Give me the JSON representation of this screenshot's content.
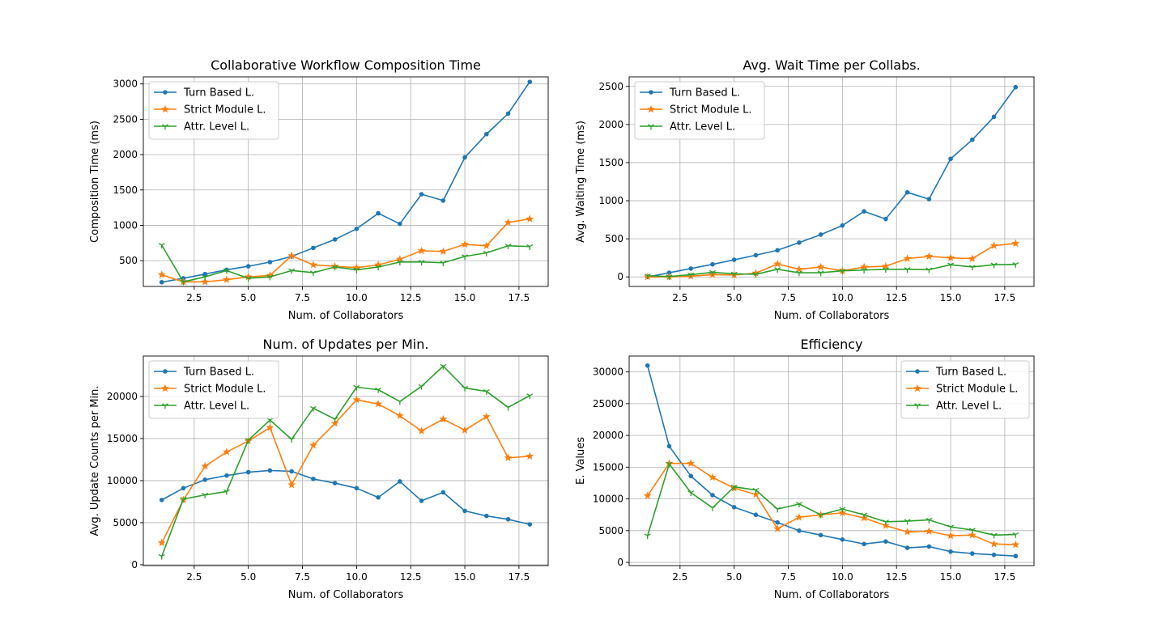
{
  "chart_data": [
    {
      "type": "line",
      "title": "Collaborative Workflow Composition Time",
      "xlabel": "Num. of Collaborators",
      "ylabel": "Composition Time (ms)",
      "xlim": [
        0.15,
        18.85
      ],
      "ylim": [
        135,
        3100
      ],
      "xticks": [
        2.5,
        5.0,
        7.5,
        10.0,
        12.5,
        15.0,
        17.5
      ],
      "xtick_labels": [
        "2.5",
        "5.0",
        "7.5",
        "10.0",
        "12.5",
        "15.0",
        "17.5"
      ],
      "yticks": [
        500,
        1000,
        1500,
        2000,
        2500,
        3000
      ],
      "ytick_labels": [
        "500",
        "1000",
        "1500",
        "2000",
        "2500",
        "3000"
      ],
      "grid": true,
      "legend_position": "upper-left",
      "x": [
        1,
        2,
        3,
        4,
        5,
        6,
        7,
        8,
        9,
        10,
        11,
        12,
        13,
        14,
        15,
        16,
        17,
        18
      ],
      "series": [
        {
          "name": "Turn Based L.",
          "color": "#1f77b4",
          "marker": "point",
          "values": [
            195,
            250,
            310,
            370,
            420,
            480,
            560,
            680,
            800,
            950,
            1170,
            1020,
            1440,
            1350,
            1960,
            2290,
            2580,
            3030
          ]
        },
        {
          "name": "Strict Module L.",
          "color": "#ff7f0e",
          "marker": "star",
          "values": [
            300,
            200,
            200,
            230,
            270,
            290,
            570,
            440,
            420,
            400,
            440,
            520,
            640,
            630,
            730,
            710,
            1040,
            1090
          ]
        },
        {
          "name": "Attr. Level L.",
          "color": "#2ca02c",
          "marker": "tri",
          "values": [
            720,
            200,
            270,
            360,
            250,
            270,
            360,
            330,
            410,
            370,
            410,
            480,
            480,
            470,
            560,
            610,
            710,
            700
          ]
        }
      ]
    },
    {
      "type": "line",
      "title": "Avg. Wait Time per Collabs.",
      "xlabel": "Num. of Collaborators",
      "ylabel": "Avg. Waiting Time (ms)",
      "xlim": [
        0.15,
        18.85
      ],
      "ylim": [
        -125,
        2625
      ],
      "xticks": [
        2.5,
        5.0,
        7.5,
        10.0,
        12.5,
        15.0,
        17.5
      ],
      "xtick_labels": [
        "2.5",
        "5.0",
        "7.5",
        "10.0",
        "12.5",
        "15.0",
        "17.5"
      ],
      "yticks": [
        0,
        500,
        1000,
        1500,
        2000,
        2500
      ],
      "ytick_labels": [
        "0",
        "500",
        "1000",
        "1500",
        "2000",
        "2500"
      ],
      "grid": true,
      "legend_position": "upper-left",
      "x": [
        1,
        2,
        3,
        4,
        5,
        6,
        7,
        8,
        9,
        10,
        11,
        12,
        13,
        14,
        15,
        16,
        17,
        18
      ],
      "series": [
        {
          "name": "Turn Based L.",
          "color": "#1f77b4",
          "marker": "point",
          "values": [
            0,
            55,
            110,
            165,
            225,
            285,
            350,
            450,
            555,
            675,
            860,
            760,
            1110,
            1020,
            1550,
            1800,
            2100,
            2490
          ]
        },
        {
          "name": "Strict Module L.",
          "color": "#ff7f0e",
          "marker": "star",
          "values": [
            0,
            0,
            10,
            30,
            25,
            50,
            170,
            100,
            130,
            80,
            130,
            140,
            240,
            270,
            250,
            240,
            410,
            440
          ]
        },
        {
          "name": "Attr. Level L.",
          "color": "#2ca02c",
          "marker": "tri",
          "values": [
            15,
            5,
            30,
            60,
            40,
            35,
            100,
            55,
            55,
            80,
            90,
            100,
            100,
            95,
            160,
            130,
            160,
            165
          ]
        }
      ]
    },
    {
      "type": "line",
      "title": "Num. of Updates per Min.",
      "xlabel": "Num. of Collaborators",
      "ylabel": "Avg. Update Counts per Min.",
      "xlim": [
        0.15,
        18.85
      ],
      "ylim": [
        -100,
        24800
      ],
      "xticks": [
        2.5,
        5.0,
        7.5,
        10.0,
        12.5,
        15.0,
        17.5
      ],
      "xtick_labels": [
        "2.5",
        "5.0",
        "7.5",
        "10.0",
        "12.5",
        "15.0",
        "17.5"
      ],
      "yticks": [
        0,
        5000,
        10000,
        15000,
        20000
      ],
      "ytick_labels": [
        "0",
        "5000",
        "10000",
        "15000",
        "20000"
      ],
      "grid": true,
      "legend_position": "upper-left",
      "x": [
        1,
        2,
        3,
        4,
        5,
        6,
        7,
        8,
        9,
        10,
        11,
        12,
        13,
        14,
        15,
        16,
        17,
        18
      ],
      "series": [
        {
          "name": "Turn Based L.",
          "color": "#1f77b4",
          "marker": "point",
          "values": [
            7700,
            9100,
            10100,
            10600,
            11000,
            11200,
            11100,
            10200,
            9700,
            9100,
            8000,
            9900,
            7600,
            8600,
            6400,
            5800,
            5400,
            4800
          ]
        },
        {
          "name": "Strict Module L.",
          "color": "#ff7f0e",
          "marker": "star",
          "values": [
            2600,
            7700,
            11700,
            13400,
            14700,
            16300,
            9500,
            14200,
            16800,
            19600,
            19100,
            17700,
            15900,
            17300,
            16000,
            17600,
            12700,
            12900
          ]
        },
        {
          "name": "Attr. Level L.",
          "color": "#2ca02c",
          "marker": "tri",
          "values": [
            1000,
            7800,
            8300,
            8700,
            14800,
            17200,
            14900,
            18600,
            17300,
            21100,
            20800,
            19400,
            21200,
            23600,
            21000,
            20600,
            18700,
            20100
          ]
        }
      ]
    },
    {
      "type": "line",
      "title": "Efficiency",
      "xlabel": "Num. of Collaborators",
      "ylabel": "E. Values",
      "xlim": [
        0.15,
        18.85
      ],
      "ylim": [
        -500,
        32500
      ],
      "xticks": [
        2.5,
        5.0,
        7.5,
        10.0,
        12.5,
        15.0,
        17.5
      ],
      "xtick_labels": [
        "2.5",
        "5.0",
        "7.5",
        "10.0",
        "12.5",
        "15.0",
        "17.5"
      ],
      "yticks": [
        0,
        5000,
        10000,
        15000,
        20000,
        25000,
        30000
      ],
      "ytick_labels": [
        "0",
        "5000",
        "10000",
        "15000",
        "20000",
        "25000",
        "30000"
      ],
      "grid": true,
      "legend_position": "upper-right",
      "x": [
        1,
        2,
        3,
        4,
        5,
        6,
        7,
        8,
        9,
        10,
        11,
        12,
        13,
        14,
        15,
        16,
        17,
        18
      ],
      "series": [
        {
          "name": "Turn Based L.",
          "color": "#1f77b4",
          "marker": "point",
          "values": [
            31000,
            18300,
            13600,
            10600,
            8700,
            7500,
            6300,
            5000,
            4300,
            3600,
            2900,
            3300,
            2300,
            2500,
            1700,
            1400,
            1200,
            1000
          ]
        },
        {
          "name": "Strict Module L.",
          "color": "#ff7f0e",
          "marker": "star",
          "values": [
            10500,
            15600,
            15600,
            13400,
            11700,
            10700,
            5300,
            7100,
            7500,
            7800,
            7000,
            5800,
            4800,
            4900,
            4200,
            4300,
            2900,
            2800
          ]
        },
        {
          "name": "Attr. Level L.",
          "color": "#2ca02c",
          "marker": "tri",
          "values": [
            4200,
            15500,
            11000,
            8600,
            11900,
            11400,
            8400,
            9200,
            7500,
            8400,
            7500,
            6400,
            6500,
            6700,
            5600,
            5100,
            4300,
            4400
          ]
        }
      ]
    }
  ]
}
